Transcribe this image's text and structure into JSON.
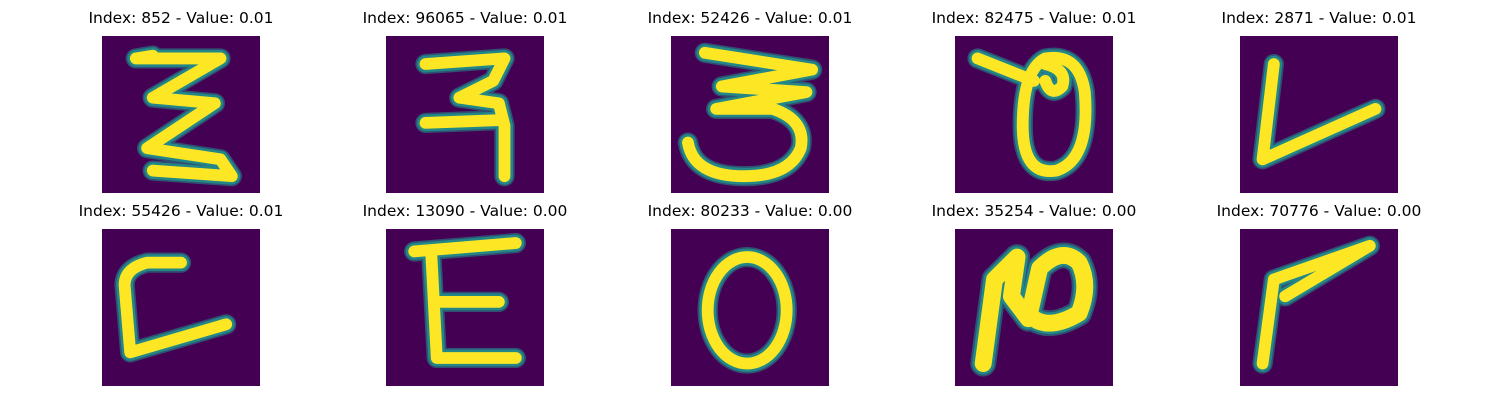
{
  "colormap": {
    "name": "viridis",
    "low": "#440154",
    "mid": "#21918c",
    "high": "#fde725"
  },
  "panels": [
    {
      "title": "Index: 852 - Value: 0.01",
      "glyph_name": "z-shaped-glyph-icon"
    },
    {
      "title": "Index: 96065 - Value: 0.01",
      "glyph_name": "hook-shaped-glyph-icon"
    },
    {
      "title": "Index: 52426 - Value: 0.01",
      "glyph_name": "three-shaped-glyph-icon"
    },
    {
      "title": "Index: 82475 - Value: 0.01",
      "glyph_name": "loop-shaped-glyph-icon"
    },
    {
      "title": "Index: 2871 - Value: 0.01",
      "glyph_name": "v-shaped-glyph-icon"
    },
    {
      "title": "Index: 55426 - Value: 0.01",
      "glyph_name": "l-shaped-glyph-icon"
    },
    {
      "title": "Index: 13090 - Value: 0.00",
      "glyph_name": "e-shaped-glyph-icon"
    },
    {
      "title": "Index: 80233 - Value: 0.00",
      "glyph_name": "o-shaped-glyph-icon"
    },
    {
      "title": "Index: 35254 - Value: 0.00",
      "glyph_name": "n-shaped-glyph-icon"
    },
    {
      "title": "Index: 70776 - Value: 0.00",
      "glyph_name": "angle-shaped-glyph-icon"
    }
  ]
}
